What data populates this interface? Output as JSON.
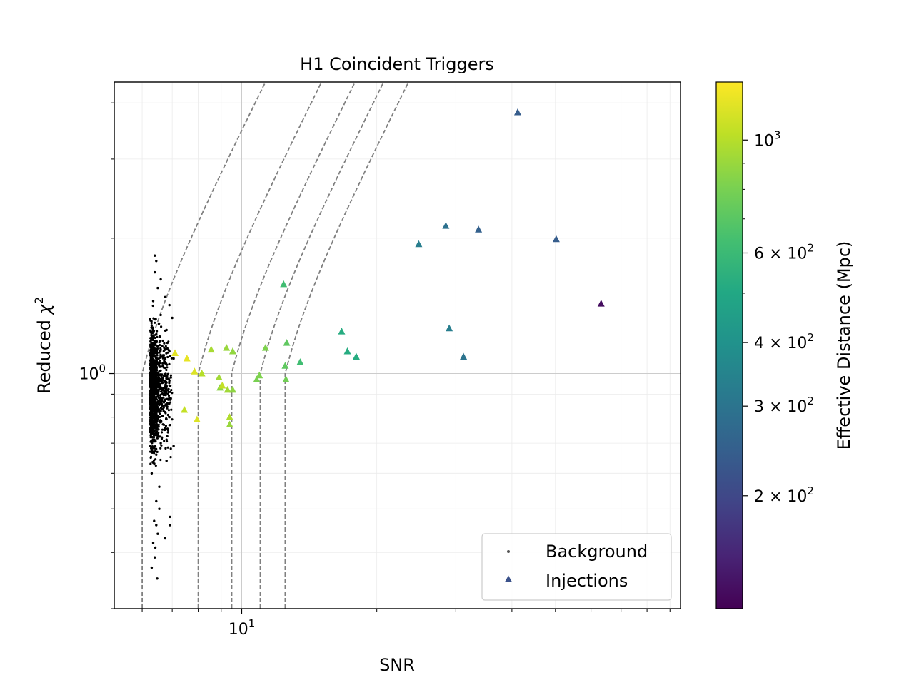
{
  "chart_data": {
    "type": "scatter",
    "title": "H1 Coincident Triggers",
    "xlabel": "SNR",
    "ylabel_main": "Reduced ",
    "ylabel_chi": "χ",
    "ylabel_exp": "2",
    "xscale": "log",
    "yscale": "log",
    "xlim": [
      5.2,
      95
    ],
    "ylim": [
      0.3,
      4.45
    ],
    "x_major_ticks": [
      {
        "value": 10,
        "base": "10",
        "exp": "1"
      }
    ],
    "y_major_ticks": [
      {
        "value": 1.0,
        "base": "10",
        "exp": "0"
      }
    ],
    "grid": true,
    "legend_position": "lower-right",
    "series": [
      {
        "name": "Background",
        "marker": "dot",
        "color": "#000000",
        "note": "Approximately 1800 dense background triggers with SNR 6.1-7.1 and reduced chi-squared 0.37-1.83; representative points listed",
        "points": [
          [
            6.4,
            1.83
          ],
          [
            6.45,
            1.78
          ],
          [
            6.4,
            1.68
          ],
          [
            6.6,
            1.62
          ],
          [
            6.5,
            1.55
          ],
          [
            6.75,
            1.48
          ],
          [
            6.35,
            1.45
          ],
          [
            6.9,
            1.42
          ],
          [
            6.6,
            1.35
          ],
          [
            7.0,
            1.33
          ],
          [
            6.3,
            1.28
          ],
          [
            6.8,
            1.25
          ],
          [
            6.5,
            1.15
          ],
          [
            6.9,
            1.12
          ],
          [
            7.05,
            1.08
          ],
          [
            6.35,
            1.03
          ],
          [
            6.95,
            0.98
          ],
          [
            6.45,
            0.92
          ],
          [
            6.95,
            0.88
          ],
          [
            6.55,
            0.82
          ],
          [
            6.9,
            0.8
          ],
          [
            6.3,
            0.76
          ],
          [
            6.85,
            0.74
          ],
          [
            6.6,
            0.7
          ],
          [
            7.05,
            0.69
          ],
          [
            6.45,
            0.66
          ],
          [
            6.8,
            0.64
          ],
          [
            6.3,
            0.6
          ],
          [
            6.55,
            0.56
          ],
          [
            6.45,
            0.52
          ],
          [
            6.55,
            0.5
          ],
          [
            6.38,
            0.47
          ],
          [
            6.45,
            0.46
          ],
          [
            6.92,
            0.48
          ],
          [
            6.92,
            0.46
          ],
          [
            6.75,
            0.43
          ],
          [
            6.5,
            0.44
          ],
          [
            6.42,
            0.41
          ],
          [
            6.35,
            0.42
          ],
          [
            6.4,
            0.39
          ],
          [
            6.3,
            0.37
          ],
          [
            6.48,
            0.35
          ]
        ]
      },
      {
        "name": "Injections",
        "marker": "triangle",
        "color_by": "effective_distance_mpc",
        "points": [
          {
            "x": 7.1,
            "y": 1.11,
            "d": 1180
          },
          {
            "x": 7.55,
            "y": 1.08,
            "d": 1200
          },
          {
            "x": 7.85,
            "y": 1.01,
            "d": 1150
          },
          {
            "x": 7.45,
            "y": 0.83,
            "d": 1050
          },
          {
            "x": 7.95,
            "y": 0.79,
            "d": 1150
          },
          {
            "x": 8.15,
            "y": 1.0,
            "d": 1000
          },
          {
            "x": 8.55,
            "y": 1.13,
            "d": 950
          },
          {
            "x": 8.9,
            "y": 0.98,
            "d": 930
          },
          {
            "x": 8.95,
            "y": 0.93,
            "d": 860
          },
          {
            "x": 9.05,
            "y": 0.94,
            "d": 1050
          },
          {
            "x": 9.25,
            "y": 1.14,
            "d": 900
          },
          {
            "x": 9.3,
            "y": 0.92,
            "d": 930
          },
          {
            "x": 9.4,
            "y": 0.8,
            "d": 980
          },
          {
            "x": 9.4,
            "y": 0.77,
            "d": 900
          },
          {
            "x": 9.55,
            "y": 0.92,
            "d": 870
          },
          {
            "x": 9.55,
            "y": 1.12,
            "d": 880
          },
          {
            "x": 10.8,
            "y": 0.97,
            "d": 800
          },
          {
            "x": 10.95,
            "y": 0.99,
            "d": 820
          },
          {
            "x": 11.3,
            "y": 1.14,
            "d": 820
          },
          {
            "x": 12.4,
            "y": 1.58,
            "d": 620
          },
          {
            "x": 12.5,
            "y": 1.04,
            "d": 720
          },
          {
            "x": 12.55,
            "y": 0.97,
            "d": 780
          },
          {
            "x": 12.6,
            "y": 1.17,
            "d": 720
          },
          {
            "x": 13.5,
            "y": 1.06,
            "d": 620
          },
          {
            "x": 16.7,
            "y": 1.24,
            "d": 520
          },
          {
            "x": 17.2,
            "y": 1.12,
            "d": 520
          },
          {
            "x": 18.0,
            "y": 1.09,
            "d": 520
          },
          {
            "x": 24.8,
            "y": 1.94,
            "d": 330
          },
          {
            "x": 28.5,
            "y": 2.13,
            "d": 290
          },
          {
            "x": 29.0,
            "y": 1.26,
            "d": 330
          },
          {
            "x": 31.2,
            "y": 1.09,
            "d": 300
          },
          {
            "x": 33.7,
            "y": 2.09,
            "d": 250
          },
          {
            "x": 41.2,
            "y": 3.81,
            "d": 240
          },
          {
            "x": 50.2,
            "y": 1.99,
            "d": 240
          },
          {
            "x": 63.2,
            "y": 1.43,
            "d": 130
          }
        ]
      }
    ],
    "contours": {
      "style": "dashed",
      "color": "#808080",
      "snr_thresholds": [
        6.0,
        8.0,
        9.5,
        11.0,
        12.5
      ]
    },
    "colorbar": {
      "label": "Effective Distance (Mpc)",
      "scale": "log",
      "range": [
        120,
        1300
      ],
      "colormap": "viridis",
      "ticks": [
        {
          "value": 200,
          "label_main": "2 × 10",
          "label_exp": "2"
        },
        {
          "value": 300,
          "label_main": "3 × 10",
          "label_exp": "2"
        },
        {
          "value": 400,
          "label_main": "4 × 10",
          "label_exp": "2"
        },
        {
          "value": 600,
          "label_main": "6 × 10",
          "label_exp": "2"
        },
        {
          "value": 1000,
          "label_main": "10",
          "label_exp": "3"
        }
      ],
      "minor_tick_values": [
        500,
        700,
        800,
        900
      ]
    },
    "legend": {
      "entries": [
        {
          "label": "Background",
          "marker": "dot",
          "color": "#555555"
        },
        {
          "label": "Injections",
          "marker": "triangle",
          "color": "#3b528b"
        }
      ]
    }
  }
}
